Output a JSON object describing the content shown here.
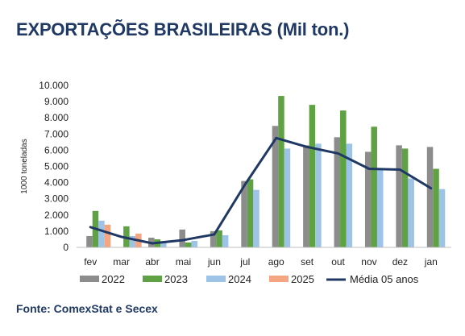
{
  "title": "EXPORTAÇÕES BRASILEIRAS (Mil ton.)",
  "source": "Fonte: ComexStat e Secex",
  "colors": {
    "s2022": "#8c8c8c",
    "s2023": "#5fa243",
    "s2024": "#9dc3e6",
    "s2025": "#f4a582",
    "media": "#1f3864"
  },
  "chart_data": {
    "type": "bar",
    "ylabel": "1000 toneladas",
    "ylim": [
      0,
      10000
    ],
    "yticks": [
      "0",
      "1.000",
      "2.000",
      "3.000",
      "4.000",
      "5.000",
      "6.000",
      "7.000",
      "8.000",
      "9.000",
      "10.000"
    ],
    "categories": [
      "fev",
      "mar",
      "abr",
      "mai",
      "jun",
      "jul",
      "ago",
      "set",
      "out",
      "nov",
      "dez",
      "jan"
    ],
    "series": [
      {
        "name": "2022",
        "kind": "bar",
        "values": [
          700,
          0,
          600,
          1100,
          1000,
          4100,
          7500,
          6300,
          6800,
          5900,
          6300,
          6200
        ]
      },
      {
        "name": "2023",
        "kind": "bar",
        "values": [
          2250,
          1300,
          500,
          300,
          1050,
          4200,
          9350,
          8800,
          8450,
          7450,
          6100,
          4850
        ]
      },
      {
        "name": "2024",
        "kind": "bar",
        "values": [
          1650,
          700,
          350,
          400,
          750,
          3550,
          6100,
          6400,
          6400,
          4850,
          4250,
          3600
        ]
      },
      {
        "name": "2025",
        "kind": "bar",
        "values": [
          1400,
          850,
          null,
          null,
          null,
          null,
          null,
          null,
          null,
          null,
          null,
          null
        ]
      },
      {
        "name": "Média 05 anos",
        "kind": "line",
        "values": [
          1250,
          650,
          250,
          450,
          800,
          3900,
          6750,
          6200,
          5800,
          4850,
          4800,
          3650
        ]
      }
    ],
    "legend": "bottom",
    "grid": false
  }
}
